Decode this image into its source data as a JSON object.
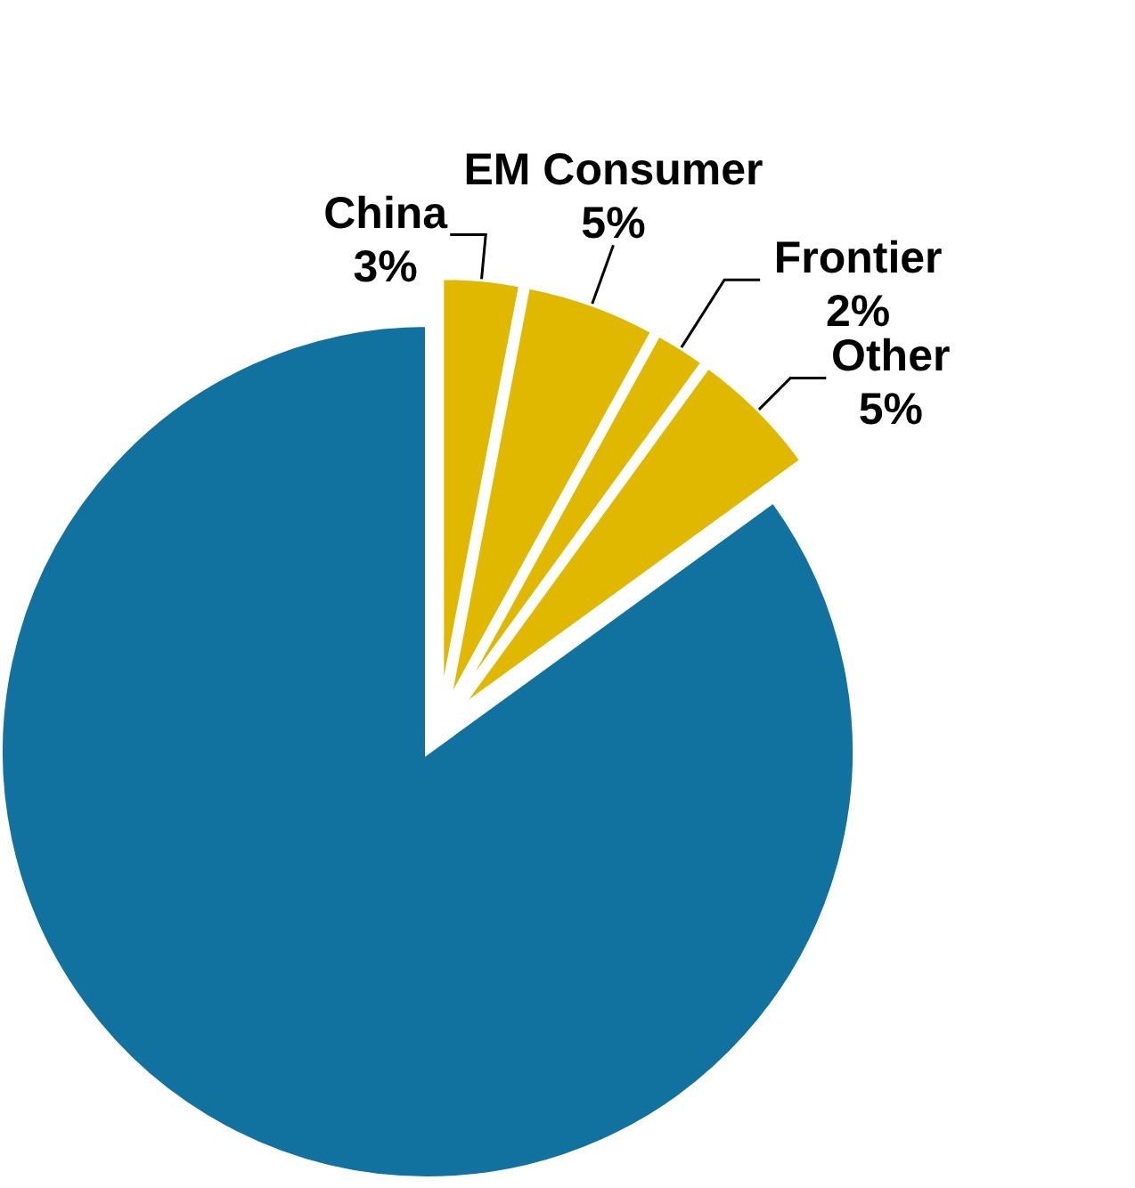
{
  "chart_data": {
    "type": "pie",
    "categories": [
      null,
      "China",
      "EM Consumer",
      "Frontier",
      "Other"
    ],
    "values": [
      85,
      3,
      5,
      2,
      5
    ],
    "colors": [
      "#1172a0",
      "#e0b800",
      "#e0b800",
      "#e0b800",
      "#e0b800"
    ],
    "value_labels": [
      null,
      "3%",
      "5%",
      "2%",
      "5%"
    ]
  }
}
